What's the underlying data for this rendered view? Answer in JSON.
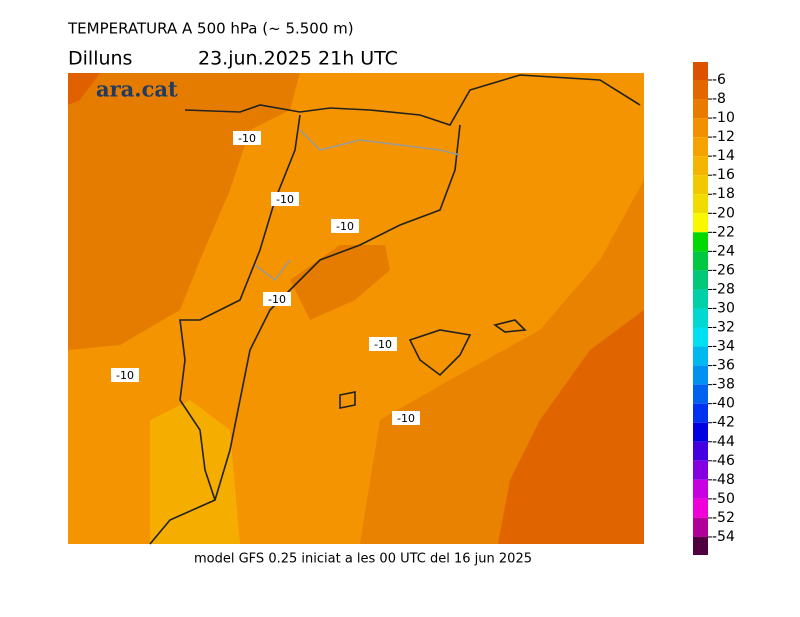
{
  "title": "TEMPERATURA A 500 hPa (~ 5.500 m)",
  "day": "Dilluns",
  "datetime": "23.jun.2025 21h UTC",
  "logo": "ara.cat",
  "footer": "model GFS 0.25 iniciat a les 00 UTC del 16 jun 2025",
  "contour_labels": [
    -10,
    -10,
    -10,
    -10,
    -10,
    -10,
    -10
  ],
  "colorbar": {
    "levels": [
      -6,
      -8,
      -10,
      -12,
      -14,
      -16,
      -18,
      -20,
      -22,
      -24,
      -26,
      -28,
      -30,
      -32,
      -34,
      -36,
      -38,
      -40,
      -42,
      -44,
      -46,
      -48,
      -50,
      -52,
      -54
    ],
    "colors": [
      "#dc5000",
      "#e46600",
      "#e87a00",
      "#f39000",
      "#f5a200",
      "#f5b400",
      "#f2c800",
      "#f2dc00",
      "#f8f800",
      "#00d800",
      "#00c840",
      "#00c878",
      "#00d0a8",
      "#00d8d0",
      "#00e0f0",
      "#00b8f0",
      "#0090f0",
      "#0060f0",
      "#0030f0",
      "#0000e0",
      "#4400e0",
      "#8400e0",
      "#c800e0",
      "#f000d8",
      "#b00098",
      "#500040"
    ]
  }
}
